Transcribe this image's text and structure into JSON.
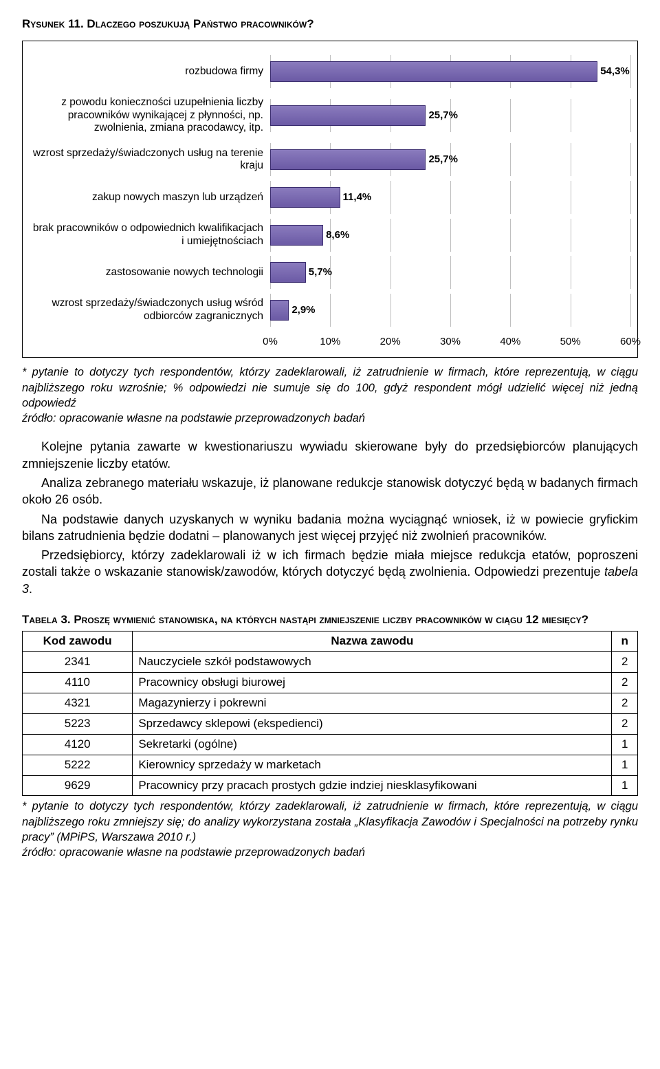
{
  "figure": {
    "title": "Rysunek 11. Dlaczego poszukują Państwo pracowników?",
    "type": "bar",
    "orientation": "horizontal",
    "xlim": [
      0,
      60
    ],
    "xtick_step": 10,
    "xticks": [
      "0%",
      "10%",
      "20%",
      "30%",
      "40%",
      "50%",
      "60%"
    ],
    "bar_color_top": "#8a7bbd",
    "bar_color_bottom": "#6b5aa5",
    "bar_border": "#3b2d6f",
    "grid_color": "#bfbfbf",
    "background_color": "#ffffff",
    "label_fontsize": 15.5,
    "value_fontsize": 15,
    "value_font_weight": "bold",
    "items": [
      {
        "label": "rozbudowa firmy",
        "value": 54.3,
        "display": "54,3%"
      },
      {
        "label": "z powodu konieczności uzupełnienia liczby pracowników wynikającej z płynności, np. zwolnienia, zmiana pracodawcy, itp.",
        "value": 25.7,
        "display": "25,7%"
      },
      {
        "label": "wzrost sprzedaży/świadczonych usług na terenie kraju",
        "value": 25.7,
        "display": "25,7%"
      },
      {
        "label": "zakup nowych maszyn lub urządzeń",
        "value": 11.4,
        "display": "11,4%"
      },
      {
        "label": "brak pracowników o odpowiednich kwalifikacjach i umiejętnościach",
        "value": 8.6,
        "display": "8,6%"
      },
      {
        "label": "zastosowanie nowych technologii",
        "value": 5.7,
        "display": "5,7%"
      },
      {
        "label": "wzrost sprzedaży/świadczonych usług wśród odbiorców zagranicznych",
        "value": 2.9,
        "display": "2,9%"
      }
    ]
  },
  "figure_footnote": "* pytanie to dotyczy tych respondentów, którzy zadeklarowali, iż zatrudnienie w firmach, które reprezentują, w ciągu najbliższego roku wzrośnie; % odpowiedzi nie sumuje się do 100, gdyż respondent mógł udzielić więcej niż jedną odpowiedź\nźródło: opracowanie własne na podstawie przeprowadzonych badań",
  "paragraphs": [
    "Kolejne pytania zawarte w kwestionariuszu wywiadu skierowane były do przedsiębiorców planujących zmniejszenie liczby etatów.",
    "Analiza zebranego materiału wskazuje, iż planowane redukcje stanowisk dotyczyć będą w badanych firmach około 26 osób.",
    "Na podstawie danych uzyskanych w wyniku badania można wyciągnąć wniosek, iż w powiecie gryfickim bilans zatrudnienia będzie dodatni – planowanych jest więcej przyjęć niż zwolnień pracowników.",
    "Przedsiębiorcy, którzy zadeklarowali iż w ich firmach będzie miała miejsce redukcja etatów, poproszeni zostali także o wskazanie stanowisk/zawodów, których dotyczyć będą zwolnienia. Odpowiedzi prezentuje tabela 3."
  ],
  "table": {
    "title": "Tabela 3. Proszę wymienić stanowiska, na których nastąpi zmniejszenie liczby pracowników w ciągu 12 miesięcy?",
    "columns": [
      "Kod zawodu",
      "Nazwa zawodu",
      "n"
    ],
    "col_align": [
      "center",
      "left",
      "center"
    ],
    "rows": [
      [
        "2341",
        "Nauczyciele szkół podstawowych",
        "2"
      ],
      [
        "4110",
        "Pracownicy obsługi biurowej",
        "2"
      ],
      [
        "4321",
        "Magazynierzy i pokrewni",
        "2"
      ],
      [
        "5223",
        "Sprzedawcy sklepowi (ekspedienci)",
        "2"
      ],
      [
        "4120",
        "Sekretarki (ogólne)",
        "1"
      ],
      [
        "5222",
        "Kierownicy sprzedaży w marketach",
        "1"
      ],
      [
        "9629",
        "Pracownicy przy pracach prostych gdzie indziej niesklasyfikowani",
        "1"
      ]
    ]
  },
  "table_footnote": "* pytanie to dotyczy tych respondentów, którzy zadeklarowali, iż zatrudnienie w firmach, które reprezentują, w ciągu najbliższego roku zmniejszy się; do analizy wykorzystana została „Klasyfikacja Zawodów i Specjalności na potrzeby rynku pracy” (MPiPS, Warszawa 2010 r.)\nźródło: opracowanie własne na podstawie przeprowadzonych badań"
}
